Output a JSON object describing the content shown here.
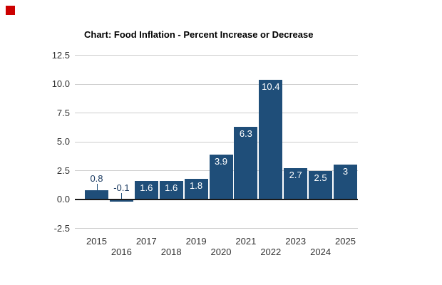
{
  "top_left_marker": {
    "color": "#CC0000"
  },
  "chart_data": {
    "type": "bar",
    "title": "Chart: Food Inflation - Percent Increase or Decrease",
    "categories": [
      "2015",
      "2016",
      "2017",
      "2018",
      "2019",
      "2020",
      "2021",
      "2022",
      "2023",
      "2024",
      "2025"
    ],
    "values": [
      0.8,
      -0.1,
      1.6,
      1.6,
      1.8,
      3.9,
      6.3,
      10.4,
      2.7,
      2.5,
      3
    ],
    "value_labels": [
      "0.8",
      "-0.1",
      "1.6",
      "1.6",
      "1.8",
      "3.9",
      "6.3",
      "10.4",
      "2.7",
      "2.5",
      "3"
    ],
    "ytick_values": [
      12.5,
      10.0,
      7.5,
      5.0,
      2.5,
      0.0,
      -2.5
    ],
    "ytick_labels": [
      "12.5",
      "10.0",
      "7.5",
      "5.0",
      "2.5",
      "0.0",
      "-2.5"
    ],
    "ylim": [
      -2.5,
      12.5
    ],
    "xlabel": "",
    "ylabel": "",
    "grid": "horizontal",
    "legend": "none",
    "x_label_layout": "staggered-two-rows",
    "colors": {
      "bar": "#1F4E79",
      "label_inside": "#FFFFFF",
      "label_outside": "#17375E",
      "leader_line": "#1F4E79",
      "gridline": "#CCCCCC",
      "zero_axis": "#1A1A1A",
      "tick_label": "#333333",
      "title": "#000000"
    }
  }
}
